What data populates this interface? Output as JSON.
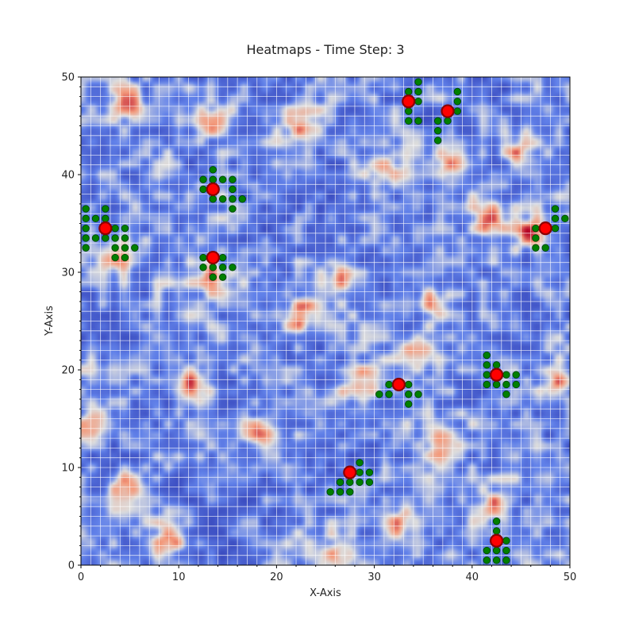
{
  "chart_data": {
    "type": "heatmap",
    "title": "Heatmaps - Time Step: 3",
    "xlabel": "X-Axis",
    "ylabel": "Y-Axis",
    "xlim": [
      0,
      50
    ],
    "ylim": [
      0,
      50
    ],
    "xticks": [
      0,
      10,
      20,
      30,
      40,
      50
    ],
    "yticks": [
      0,
      10,
      20,
      30,
      40,
      50
    ],
    "grid": true,
    "colormap": "coolwarm",
    "colors": {
      "low": "#3b4cc0",
      "mid": "#dddddd",
      "high": "#b40426",
      "grid": "#ffffff",
      "agent": "#ff0000",
      "agent_edge": "#8b0000",
      "trail": "#008000",
      "trail_edge": "#004d00"
    },
    "heat_peaks": [
      [
        4.5,
        8
      ],
      [
        11.5,
        18.5
      ],
      [
        13.5,
        45.5
      ],
      [
        26.5,
        29.5
      ],
      [
        36,
        27
      ],
      [
        45,
        42.5
      ],
      [
        42,
        35.5
      ],
      [
        38,
        41
      ],
      [
        3.5,
        31.5
      ],
      [
        32.5,
        4.5
      ],
      [
        42.5,
        6
      ],
      [
        28.5,
        18.5
      ],
      [
        34.5,
        21.5
      ],
      [
        22.5,
        25.5
      ],
      [
        31,
        40.5
      ],
      [
        4.5,
        47.5
      ],
      [
        1.5,
        14.5
      ],
      [
        26.5,
        1
      ],
      [
        18.5,
        13.5
      ],
      [
        48.5,
        18.5
      ],
      [
        9,
        2.5
      ],
      [
        22.5,
        45
      ],
      [
        13.5,
        29.5
      ],
      [
        46,
        34
      ],
      [
        36.5,
        12.5
      ]
    ],
    "agents": [
      [
        2.5,
        34.5
      ],
      [
        13.5,
        38.5
      ],
      [
        13.5,
        31.5
      ],
      [
        33.5,
        47.5
      ],
      [
        37.5,
        46.5
      ],
      [
        47.5,
        34.5
      ],
      [
        42.5,
        19.5
      ],
      [
        32.5,
        18.5
      ],
      [
        27.5,
        9.5
      ],
      [
        42.5,
        2.5
      ]
    ],
    "trails": [
      [
        0.5,
        36.5
      ],
      [
        0.5,
        35.5
      ],
      [
        0.5,
        34.5
      ],
      [
        0.5,
        33.5
      ],
      [
        0.5,
        32.5
      ],
      [
        1.5,
        35.5
      ],
      [
        1.5,
        33.5
      ],
      [
        2.5,
        36.5
      ],
      [
        2.5,
        35.5
      ],
      [
        2.5,
        33.5
      ],
      [
        3.5,
        34.5
      ],
      [
        3.5,
        33.5
      ],
      [
        3.5,
        32.5
      ],
      [
        3.5,
        31.5
      ],
      [
        4.5,
        34.5
      ],
      [
        4.5,
        33.5
      ],
      [
        4.5,
        32.5
      ],
      [
        4.5,
        31.5
      ],
      [
        5.5,
        32.5
      ],
      [
        12.5,
        39.5
      ],
      [
        12.5,
        38.5
      ],
      [
        13.5,
        40.5
      ],
      [
        13.5,
        39.5
      ],
      [
        13.5,
        37.5
      ],
      [
        14.5,
        39.5
      ],
      [
        14.5,
        37.5
      ],
      [
        15.5,
        39.5
      ],
      [
        15.5,
        38.5
      ],
      [
        15.5,
        37.5
      ],
      [
        15.5,
        36.5
      ],
      [
        16.5,
        37.5
      ],
      [
        12.5,
        31.5
      ],
      [
        12.5,
        30.5
      ],
      [
        13.5,
        30.5
      ],
      [
        13.5,
        29.5
      ],
      [
        14.5,
        31.5
      ],
      [
        14.5,
        30.5
      ],
      [
        14.5,
        29.5
      ],
      [
        15.5,
        30.5
      ],
      [
        33.5,
        48.5
      ],
      [
        33.5,
        46.5
      ],
      [
        33.5,
        45.5
      ],
      [
        34.5,
        49.5
      ],
      [
        34.5,
        48.5
      ],
      [
        34.5,
        47.5
      ],
      [
        34.5,
        45.5
      ],
      [
        36.5,
        45.5
      ],
      [
        36.5,
        44.5
      ],
      [
        36.5,
        43.5
      ],
      [
        37.5,
        45.5
      ],
      [
        38.5,
        48.5
      ],
      [
        38.5,
        47.5
      ],
      [
        38.5,
        46.5
      ],
      [
        46.5,
        34.5
      ],
      [
        46.5,
        33.5
      ],
      [
        46.5,
        32.5
      ],
      [
        47.5,
        32.5
      ],
      [
        48.5,
        36.5
      ],
      [
        48.5,
        35.5
      ],
      [
        48.5,
        34.5
      ],
      [
        49.5,
        35.5
      ],
      [
        41.5,
        21.5
      ],
      [
        41.5,
        20.5
      ],
      [
        41.5,
        19.5
      ],
      [
        41.5,
        18.5
      ],
      [
        42.5,
        20.5
      ],
      [
        42.5,
        18.5
      ],
      [
        43.5,
        19.5
      ],
      [
        43.5,
        18.5
      ],
      [
        43.5,
        17.5
      ],
      [
        44.5,
        19.5
      ],
      [
        44.5,
        18.5
      ],
      [
        30.5,
        17.5
      ],
      [
        31.5,
        18.5
      ],
      [
        31.5,
        17.5
      ],
      [
        33.5,
        18.5
      ],
      [
        33.5,
        17.5
      ],
      [
        33.5,
        16.5
      ],
      [
        34.5,
        17.5
      ],
      [
        25.5,
        7.5
      ],
      [
        26.5,
        8.5
      ],
      [
        26.5,
        7.5
      ],
      [
        27.5,
        8.5
      ],
      [
        27.5,
        7.5
      ],
      [
        28.5,
        10.5
      ],
      [
        28.5,
        9.5
      ],
      [
        28.5,
        8.5
      ],
      [
        29.5,
        9.5
      ],
      [
        29.5,
        8.5
      ],
      [
        41.5,
        1.5
      ],
      [
        41.5,
        0.5
      ],
      [
        42.5,
        4.5
      ],
      [
        42.5,
        3.5
      ],
      [
        42.5,
        1.5
      ],
      [
        42.5,
        0.5
      ],
      [
        43.5,
        2.5
      ],
      [
        43.5,
        1.5
      ],
      [
        43.5,
        0.5
      ]
    ]
  }
}
